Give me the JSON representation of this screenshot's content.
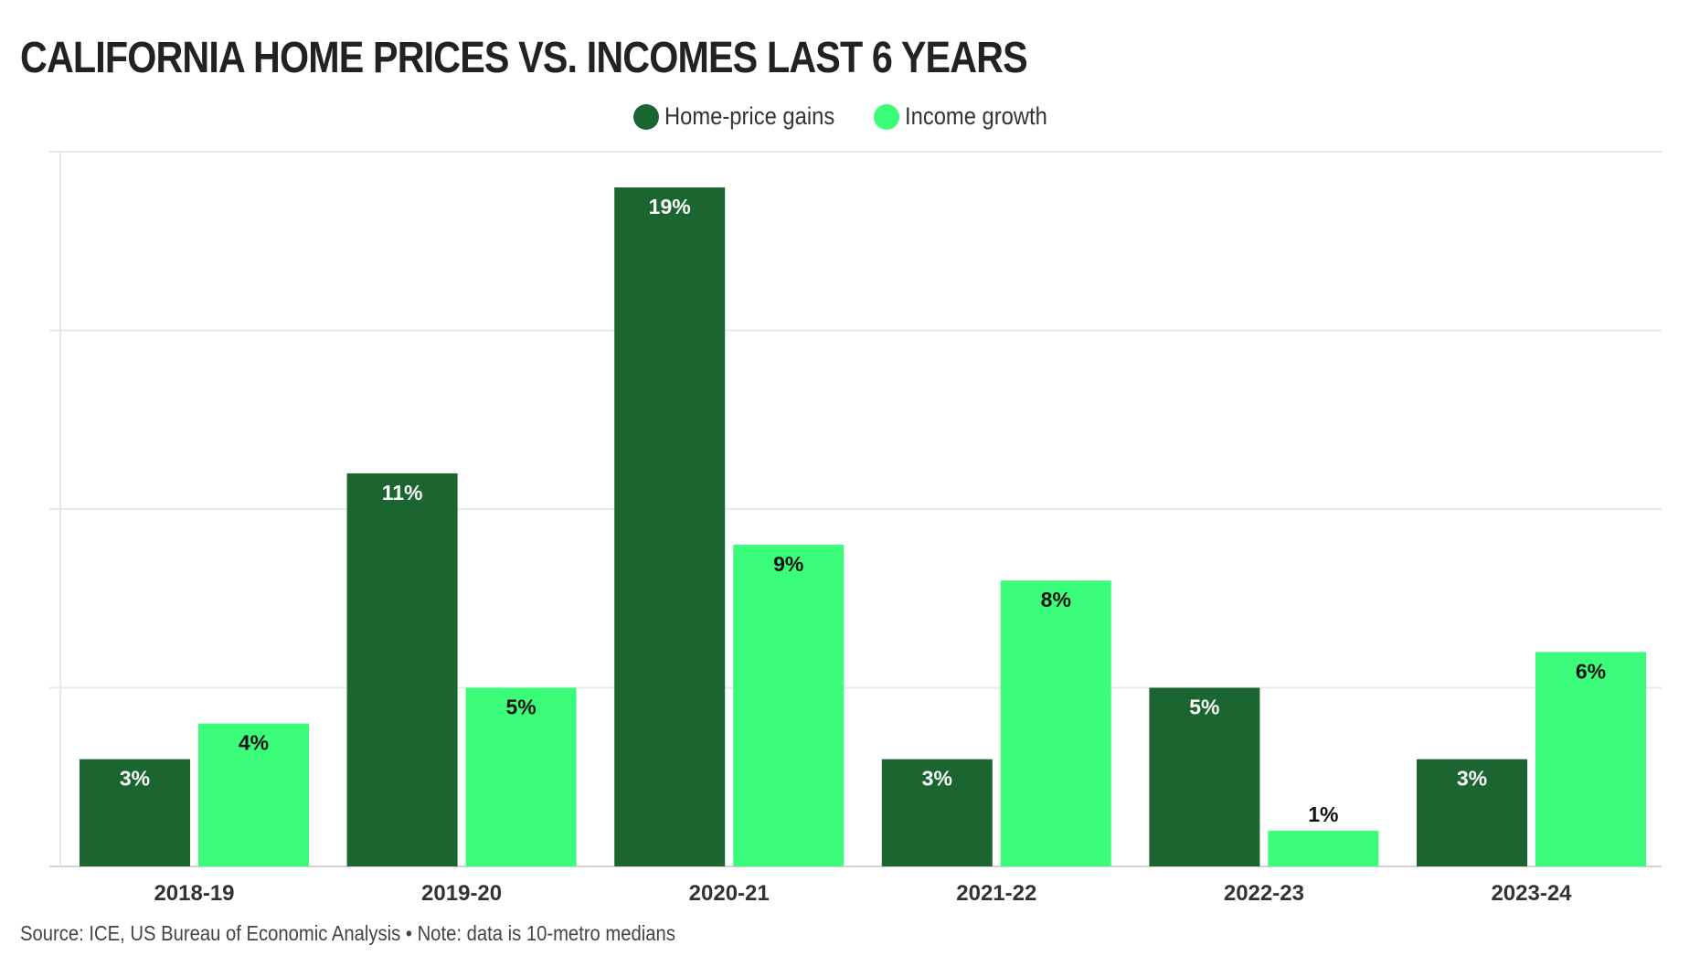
{
  "chart_data": {
    "type": "bar",
    "title": "CALIFORNIA HOME PRICES VS. INCOMES LAST 6 YEARS",
    "categories": [
      "2018-19",
      "2019-20",
      "2020-21",
      "2021-22",
      "2022-23",
      "2023-24"
    ],
    "series": [
      {
        "name": "Home-price gains",
        "color": "#1b6630",
        "label_color": "#ffffff",
        "values": [
          3,
          11,
          19,
          3,
          5,
          3
        ],
        "labels": [
          "3%",
          "11%",
          "19%",
          "3%",
          "5%",
          "3%"
        ]
      },
      {
        "name": "Income growth",
        "color": "#3cfd79",
        "label_color": "#111111",
        "values": [
          4,
          5,
          9,
          8,
          1,
          6
        ],
        "labels": [
          "4%",
          "5%",
          "9%",
          "8%",
          "1%",
          "6%"
        ]
      }
    ],
    "xlabel": "",
    "ylabel": "",
    "ylim": [
      0,
      20
    ],
    "grid": true,
    "legend_position": "top-center"
  },
  "source_note": "Source: ICE, US Bureau of Economic Analysis • Note: data is 10-metro medians"
}
